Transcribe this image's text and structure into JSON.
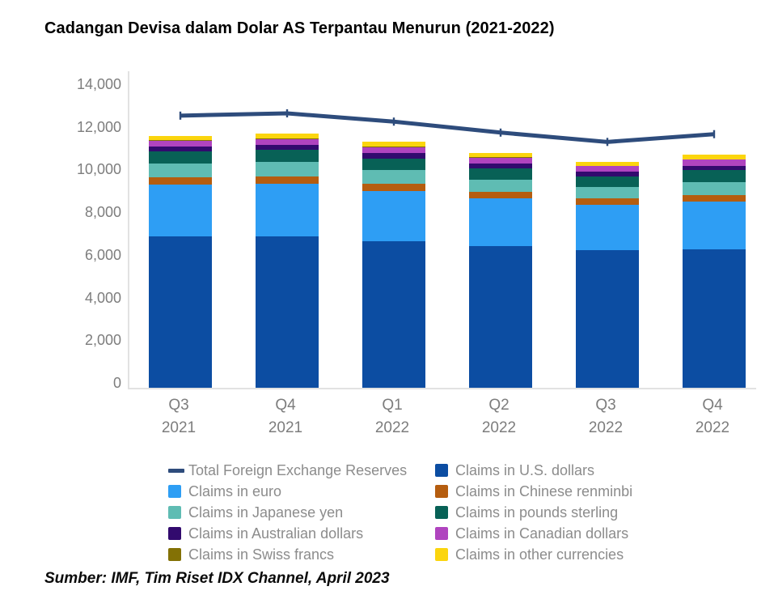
{
  "page": {
    "title": "Cadangan Devisa dalam Dolar AS Terpantau Menurun (2021-2022)",
    "source": "Sumber: IMF, Tim Riset IDX Channel, April 2023"
  },
  "colors": {
    "axis_text": "#7d7d7d",
    "legend_text": "#8c8c8c",
    "plot_border": "#e2e2e2",
    "background": "#ffffff"
  },
  "chart_data": {
    "type": "bar",
    "subtype": "stacked-bars-with-line-overlay",
    "title": "Cadangan Devisa dalam Dolar AS Terpantau Menurun (2021-2022)",
    "categories": [
      {
        "quarter": "Q3",
        "year": "2021"
      },
      {
        "quarter": "Q4",
        "year": "2021"
      },
      {
        "quarter": "Q1",
        "year": "2022"
      },
      {
        "quarter": "Q2",
        "year": "2022"
      },
      {
        "quarter": "Q3",
        "year": "2022"
      },
      {
        "quarter": "Q4",
        "year": "2022"
      }
    ],
    "y_axis": {
      "min": 0,
      "max": 14000,
      "step": 2000,
      "grid": false,
      "tick_labels": [
        "0",
        "2,000",
        "4,000",
        "6,000",
        "8,000",
        "10,000",
        "12,000",
        "14,000"
      ]
    },
    "series": [
      {
        "key": "usd",
        "label": "Claims in U.S. dollars",
        "color": "#0c4da2",
        "values": [
          7081,
          7087,
          6875,
          6652,
          6441,
          6471
        ]
      },
      {
        "key": "eur",
        "label": "Claims in euro",
        "color": "#2e9ef4",
        "values": [
          2453,
          2486,
          2339,
          2212,
          2128,
          2271
        ]
      },
      {
        "key": "cny",
        "label": "Claims in Chinese renminbi",
        "color": "#b55d0f",
        "values": [
          319,
          337,
          336,
          322,
          298,
          298
        ]
      },
      {
        "key": "jpy",
        "label": "Claims in Japanese yen",
        "color": "#5fbcb3",
        "values": [
          666,
          664,
          647,
          580,
          551,
          611
        ]
      },
      {
        "key": "gbp",
        "label": "Claims in pounds sterling",
        "color": "#086156",
        "values": [
          566,
          578,
          560,
          534,
          503,
          541
        ]
      },
      {
        "key": "aud",
        "label": "Claims in Australian dollars",
        "color": "#320a6e",
        "values": [
          216,
          221,
          229,
          215,
          211,
          222
        ]
      },
      {
        "key": "cad",
        "label": "Claims in Canadian dollars",
        "color": "#b044bf",
        "values": [
          285,
          288,
          297,
          278,
          256,
          272
        ]
      },
      {
        "key": "chf",
        "label": "Claims in Swiss francs",
        "color": "#837105",
        "values": [
          20,
          21,
          24,
          23,
          23,
          26
        ]
      },
      {
        "key": "other",
        "label": "Claims in other currencies",
        "color": "#fbd50e",
        "values": [
          210,
          223,
          217,
          202,
          192,
          216
        ]
      }
    ],
    "line": {
      "key": "total",
      "label": "Total Foreign Exchange Reserves",
      "color": "#2e4c7c",
      "values": [
        12830,
        12937,
        12550,
        12035,
        11598,
        11962
      ]
    },
    "legend": {
      "position": "bottom",
      "columns": [
        [
          "total",
          "eur",
          "jpy",
          "aud",
          "chf"
        ],
        [
          "usd",
          "cny",
          "gbp",
          "cad",
          "other"
        ]
      ]
    }
  }
}
